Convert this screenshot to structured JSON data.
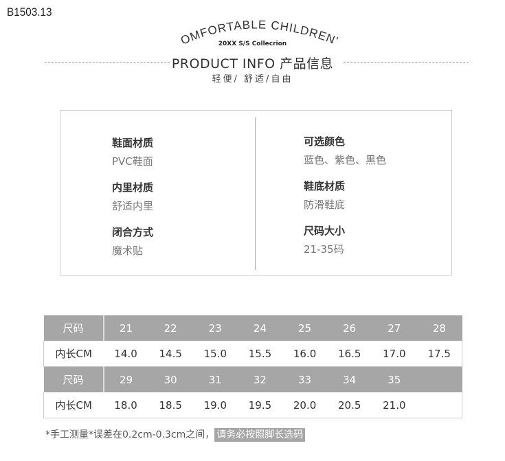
{
  "product_code": "B1503.13",
  "header": {
    "arc_title": "COMFORTABLE CHILDREN'S",
    "collection": "20XX S/S Collecrion",
    "title": "PRODUCT INFO  产品信息",
    "subtitle": "轻便/ 舒适/自由"
  },
  "info": {
    "left": [
      {
        "label": "鞋面材质",
        "value": "PVC鞋面"
      },
      {
        "label": "内里材质",
        "value": "舒适内里"
      },
      {
        "label": "闭合方式",
        "value": "魔术贴"
      }
    ],
    "right": [
      {
        "label": "可选颜色",
        "value": "蓝色、紫色、黑色"
      },
      {
        "label": "鞋底材质",
        "value": "防滑鞋底"
      },
      {
        "label": "尺码大小",
        "value": "21-35码"
      }
    ]
  },
  "size_table": {
    "size_header": "尺码",
    "length_header": "内长CM",
    "rows": [
      {
        "sizes": [
          "21",
          "22",
          "23",
          "24",
          "25",
          "26",
          "27",
          "28"
        ],
        "lengths": [
          "14.0",
          "14.5",
          "15.0",
          "15.5",
          "16.0",
          "16.5",
          "17.0",
          "17.5"
        ]
      },
      {
        "sizes": [
          "29",
          "30",
          "31",
          "32",
          "33",
          "34",
          "35",
          ""
        ],
        "lengths": [
          "18.0",
          "18.5",
          "19.0",
          "19.5",
          "20.0",
          "20.5",
          "21.0",
          ""
        ]
      }
    ]
  },
  "note": {
    "text": "*手工测量*误差在0.2cm-0.3cm之间，",
    "highlight": "请务必按照脚长选码"
  },
  "colors": {
    "table_header": "#a6a6a6",
    "border": "#cccccc"
  }
}
